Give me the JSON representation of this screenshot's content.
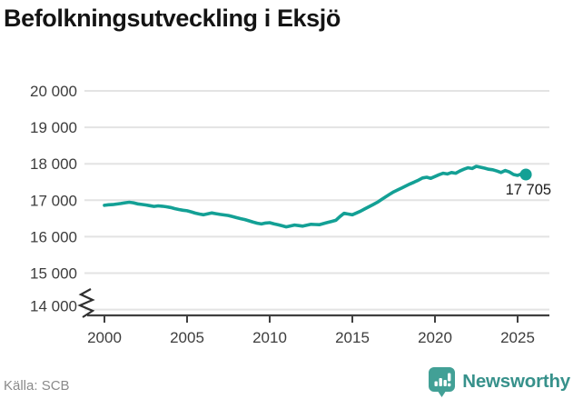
{
  "title": "Befolkningsutveckling i Eksjö",
  "source": "Källa: SCB",
  "brand": {
    "name": "Newsworthy",
    "icon": "newsworthy-bubble-chart-icon"
  },
  "colors": {
    "line": "#13a095",
    "grid": "#e3e3e3",
    "axis": "#3f3f3f",
    "tick_label": "#3d3d3d",
    "title": "#141414",
    "source": "#8a8a8a",
    "brand": "#37918b",
    "brand_icon": "#42a096",
    "annotation": "#1b1b1b"
  },
  "chart_data": {
    "type": "line",
    "title": "Befolkningsutveckling i Eksjö",
    "xlabel": "",
    "ylabel": "",
    "x_range": [
      2000,
      2025.5
    ],
    "ylim": [
      14000,
      20000
    ],
    "axis_break": true,
    "grid": "horizontal",
    "legend": "none",
    "yticks": [
      {
        "value": 20000,
        "label": "20 000"
      },
      {
        "value": 19000,
        "label": "19 000"
      },
      {
        "value": 18000,
        "label": "18 000"
      },
      {
        "value": 17000,
        "label": "17 000"
      },
      {
        "value": 16000,
        "label": "16 000"
      },
      {
        "value": 15000,
        "label": "15 000"
      },
      {
        "value": 14000,
        "label": "14 000"
      }
    ],
    "xticks": [
      {
        "value": 2000,
        "label": "2000"
      },
      {
        "value": 2005,
        "label": "2005"
      },
      {
        "value": 2010,
        "label": "2010"
      },
      {
        "value": 2015,
        "label": "2015"
      },
      {
        "value": 2020,
        "label": "2020"
      },
      {
        "value": 2025,
        "label": "2025"
      }
    ],
    "end_label": {
      "text": "17 705",
      "value": 17705,
      "x": 2025.5
    },
    "series": [
      {
        "name": "Eksjö",
        "color": "#13a095",
        "points": [
          [
            2000.0,
            16860
          ],
          [
            2000.25,
            16875
          ],
          [
            2000.5,
            16880
          ],
          [
            2000.75,
            16895
          ],
          [
            2001.0,
            16910
          ],
          [
            2001.25,
            16930
          ],
          [
            2001.5,
            16945
          ],
          [
            2001.75,
            16930
          ],
          [
            2002.0,
            16900
          ],
          [
            2002.25,
            16885
          ],
          [
            2002.5,
            16870
          ],
          [
            2002.75,
            16850
          ],
          [
            2003.0,
            16830
          ],
          [
            2003.25,
            16845
          ],
          [
            2003.5,
            16835
          ],
          [
            2003.75,
            16820
          ],
          [
            2004.0,
            16800
          ],
          [
            2004.25,
            16770
          ],
          [
            2004.5,
            16745
          ],
          [
            2004.75,
            16725
          ],
          [
            2005.0,
            16710
          ],
          [
            2005.25,
            16680
          ],
          [
            2005.5,
            16645
          ],
          [
            2005.75,
            16620
          ],
          [
            2006.0,
            16600
          ],
          [
            2006.25,
            16625
          ],
          [
            2006.5,
            16650
          ],
          [
            2006.75,
            16630
          ],
          [
            2007.0,
            16610
          ],
          [
            2007.25,
            16595
          ],
          [
            2007.5,
            16580
          ],
          [
            2007.75,
            16550
          ],
          [
            2008.0,
            16520
          ],
          [
            2008.25,
            16495
          ],
          [
            2008.5,
            16470
          ],
          [
            2008.75,
            16435
          ],
          [
            2009.0,
            16400
          ],
          [
            2009.25,
            16370
          ],
          [
            2009.5,
            16350
          ],
          [
            2009.75,
            16375
          ],
          [
            2010.0,
            16385
          ],
          [
            2010.25,
            16355
          ],
          [
            2010.5,
            16330
          ],
          [
            2010.75,
            16300
          ],
          [
            2011.0,
            16270
          ],
          [
            2011.25,
            16295
          ],
          [
            2011.5,
            16320
          ],
          [
            2011.75,
            16305
          ],
          [
            2012.0,
            16290
          ],
          [
            2012.25,
            16315
          ],
          [
            2012.5,
            16340
          ],
          [
            2012.75,
            16335
          ],
          [
            2013.0,
            16330
          ],
          [
            2013.25,
            16360
          ],
          [
            2013.5,
            16390
          ],
          [
            2013.75,
            16420
          ],
          [
            2014.0,
            16450
          ],
          [
            2014.25,
            16550
          ],
          [
            2014.5,
            16640
          ],
          [
            2014.75,
            16620
          ],
          [
            2015.0,
            16600
          ],
          [
            2015.25,
            16650
          ],
          [
            2015.5,
            16700
          ],
          [
            2015.75,
            16760
          ],
          [
            2016.0,
            16820
          ],
          [
            2016.25,
            16880
          ],
          [
            2016.5,
            16940
          ],
          [
            2016.75,
            17015
          ],
          [
            2017.0,
            17090
          ],
          [
            2017.25,
            17160
          ],
          [
            2017.5,
            17230
          ],
          [
            2017.75,
            17285
          ],
          [
            2018.0,
            17340
          ],
          [
            2018.25,
            17395
          ],
          [
            2018.5,
            17450
          ],
          [
            2018.75,
            17500
          ],
          [
            2019.0,
            17550
          ],
          [
            2019.25,
            17610
          ],
          [
            2019.5,
            17630
          ],
          [
            2019.75,
            17600
          ],
          [
            2020.0,
            17650
          ],
          [
            2020.25,
            17700
          ],
          [
            2020.5,
            17740
          ],
          [
            2020.75,
            17720
          ],
          [
            2021.0,
            17760
          ],
          [
            2021.25,
            17740
          ],
          [
            2021.5,
            17800
          ],
          [
            2021.75,
            17850
          ],
          [
            2022.0,
            17890
          ],
          [
            2022.25,
            17870
          ],
          [
            2022.5,
            17930
          ],
          [
            2022.75,
            17905
          ],
          [
            2023.0,
            17880
          ],
          [
            2023.25,
            17850
          ],
          [
            2023.5,
            17835
          ],
          [
            2023.75,
            17800
          ],
          [
            2024.0,
            17760
          ],
          [
            2024.25,
            17815
          ],
          [
            2024.5,
            17775
          ],
          [
            2024.75,
            17705
          ],
          [
            2025.0,
            17680
          ],
          [
            2025.25,
            17725
          ],
          [
            2025.5,
            17705
          ]
        ]
      }
    ]
  }
}
